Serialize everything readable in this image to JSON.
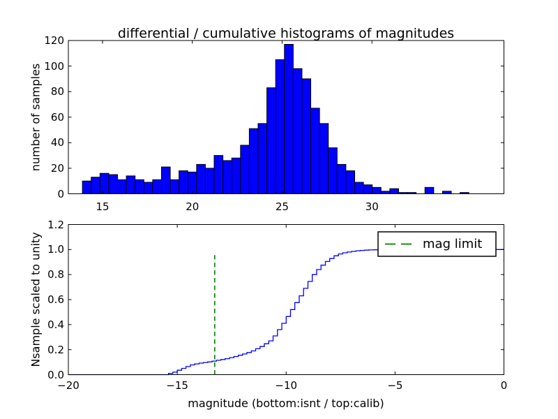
{
  "figure": {
    "background": "#ffffff",
    "title": "differential / cumulative histograms of magnitudes"
  },
  "chart_data": [
    {
      "type": "bar",
      "subplot": "top",
      "title": "differential / cumulative histograms of magnitudes",
      "ylabel": "number of samples",
      "xlim": [
        13.1,
        37.3
      ],
      "ylim": [
        0,
        120
      ],
      "xticks": [
        15,
        20,
        25,
        30
      ],
      "xtick_labels": [
        "15",
        "20",
        "25",
        "30"
      ],
      "yticks": [
        0,
        20,
        40,
        60,
        80,
        100,
        120
      ],
      "ytick_labels": [
        "0",
        "20",
        "40",
        "60",
        "80",
        "100",
        "120"
      ],
      "grid": false,
      "bin_start": 13.88,
      "bin_width": 0.489,
      "counts": [
        10,
        13,
        16,
        15,
        11,
        14,
        11,
        9,
        11,
        21,
        11,
        18,
        17,
        23,
        20,
        30,
        26,
        28,
        38,
        51,
        55,
        83,
        105,
        117,
        98,
        90,
        67,
        55,
        36,
        23,
        18,
        9,
        7,
        5,
        2,
        4,
        1,
        1,
        0,
        5,
        0,
        2,
        0,
        1
      ],
      "bar_color": "#0000ff",
      "bar_edge_color": "#000000"
    },
    {
      "type": "line",
      "subplot": "bottom",
      "style": "steps",
      "ylabel": "Nsample scaled to unity",
      "xlabel": "magnitude (bottom:isnt / top:calib)",
      "xlim": [
        -20,
        0
      ],
      "ylim": [
        0,
        1.2
      ],
      "xticks": [
        -20,
        -15,
        -10,
        -5,
        0
      ],
      "xtick_labels": [
        "−20",
        "−15",
        "−10",
        "−5",
        "0"
      ],
      "yticks": [
        0,
        0.2,
        0.4,
        0.6,
        0.8,
        1.0,
        1.2
      ],
      "ytick_labels": [
        "0.0",
        "0.2",
        "0.4",
        "0.6",
        "0.8",
        "1.0",
        "1.2"
      ],
      "grid": false,
      "line_color": "#0000ff",
      "points": [
        [
          -15.6,
          0.0
        ],
        [
          -15.4,
          0.01
        ],
        [
          -15.2,
          0.02
        ],
        [
          -15.0,
          0.035
        ],
        [
          -14.8,
          0.05
        ],
        [
          -14.6,
          0.065
        ],
        [
          -14.4,
          0.078
        ],
        [
          -14.2,
          0.086
        ],
        [
          -14.0,
          0.092
        ],
        [
          -13.8,
          0.097
        ],
        [
          -13.6,
          0.102
        ],
        [
          -13.4,
          0.108
        ],
        [
          -13.2,
          0.115
        ],
        [
          -13.0,
          0.121
        ],
        [
          -12.8,
          0.128
        ],
        [
          -12.6,
          0.136
        ],
        [
          -12.4,
          0.145
        ],
        [
          -12.2,
          0.155
        ],
        [
          -12.0,
          0.165
        ],
        [
          -11.8,
          0.177
        ],
        [
          -11.6,
          0.19
        ],
        [
          -11.4,
          0.207
        ],
        [
          -11.2,
          0.225
        ],
        [
          -11.0,
          0.247
        ],
        [
          -10.8,
          0.27
        ],
        [
          -10.6,
          0.31
        ],
        [
          -10.4,
          0.36
        ],
        [
          -10.2,
          0.41
        ],
        [
          -10.0,
          0.465
        ],
        [
          -9.8,
          0.52
        ],
        [
          -9.6,
          0.576
        ],
        [
          -9.4,
          0.63
        ],
        [
          -9.2,
          0.69
        ],
        [
          -9.0,
          0.745
        ],
        [
          -8.8,
          0.8
        ],
        [
          -8.6,
          0.84
        ],
        [
          -8.4,
          0.875
        ],
        [
          -8.2,
          0.905
        ],
        [
          -8.0,
          0.928
        ],
        [
          -7.8,
          0.95
        ],
        [
          -7.6,
          0.965
        ],
        [
          -7.4,
          0.974
        ],
        [
          -7.2,
          0.98
        ],
        [
          -7.0,
          0.985
        ],
        [
          -6.8,
          0.99
        ],
        [
          -6.6,
          0.993
        ],
        [
          -6.4,
          0.995
        ],
        [
          -6.2,
          0.997
        ],
        [
          -6.0,
          0.998
        ],
        [
          -5.8,
          0.999
        ],
        [
          -5.6,
          1.0
        ],
        [
          0,
          1.0
        ]
      ],
      "mag_limit": {
        "x": -13.28,
        "y_top": 0.956,
        "color": "#008000",
        "linestyle": "dashed"
      },
      "legend": {
        "label": "mag limit",
        "position": "upper right",
        "line_color": "#008000"
      }
    }
  ]
}
